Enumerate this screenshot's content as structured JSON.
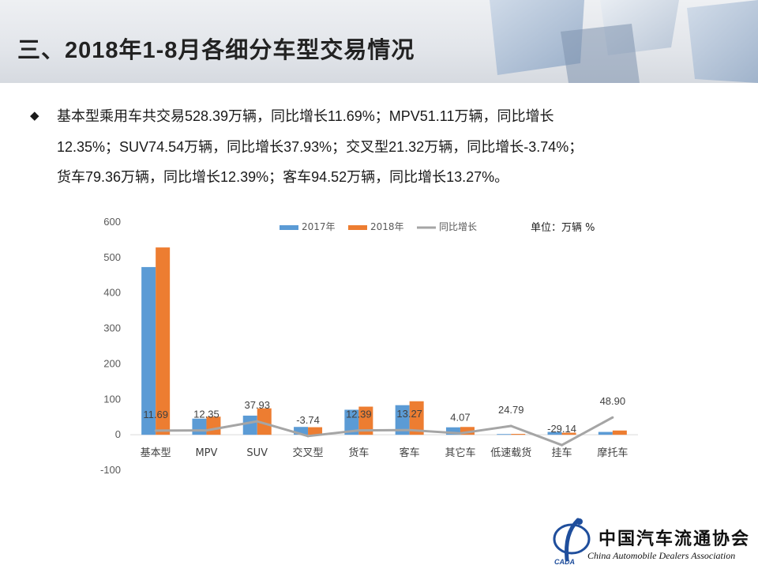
{
  "header": {
    "title": "三、2018年1-8月各细分车型交易情况"
  },
  "bullets": {
    "lines": [
      "基本型乘用车共交易528.39万辆，同比增长11.69%；MPV51.11万辆，同比增长",
      "12.35%；SUV74.54万辆，同比增长37.93%；交叉型21.32万辆，同比增长-3.74%；",
      "货车79.36万辆，同比增长12.39%；客车94.52万辆，同比增长13.27%。"
    ]
  },
  "logo": {
    "cn": "中国汽车流通协会",
    "en": "China Automobile Dealers Association"
  },
  "chart_data": {
    "type": "bar",
    "unit_label": "单位：万辆  %",
    "categories": [
      "基本型",
      "MPV",
      "SUV",
      "交叉型",
      "货车",
      "客车",
      "其它车",
      "低速载货",
      "挂车",
      "摩托车"
    ],
    "series": [
      {
        "name": "2017年",
        "type": "bar",
        "color": "#5b9bd5",
        "values": [
          473.1,
          45.5,
          54.0,
          22.1,
          70.6,
          83.5,
          21.0,
          2.0,
          8.0,
          8.0
        ]
      },
      {
        "name": "2018年",
        "type": "bar",
        "color": "#ed7d31",
        "values": [
          528.39,
          51.11,
          74.54,
          21.32,
          79.36,
          94.52,
          22.0,
          2.5,
          5.7,
          12.0
        ]
      },
      {
        "name": "同比增长",
        "type": "line",
        "color": "#a5a5a5",
        "values": [
          11.69,
          12.35,
          37.93,
          -3.74,
          12.39,
          13.27,
          4.07,
          24.79,
          -29.14,
          48.9
        ]
      }
    ],
    "growth_labels": [
      "11.69",
      "12.35",
      "37.93",
      "-3.74",
      "12.39",
      "13.27",
      "4.07",
      "24.79",
      "-29.14",
      "48.90"
    ],
    "ylim": [
      -100,
      600
    ],
    "yticks": [
      -100,
      0,
      100,
      200,
      300,
      400,
      500,
      600
    ],
    "legend_position": "top-center",
    "grid": false
  }
}
